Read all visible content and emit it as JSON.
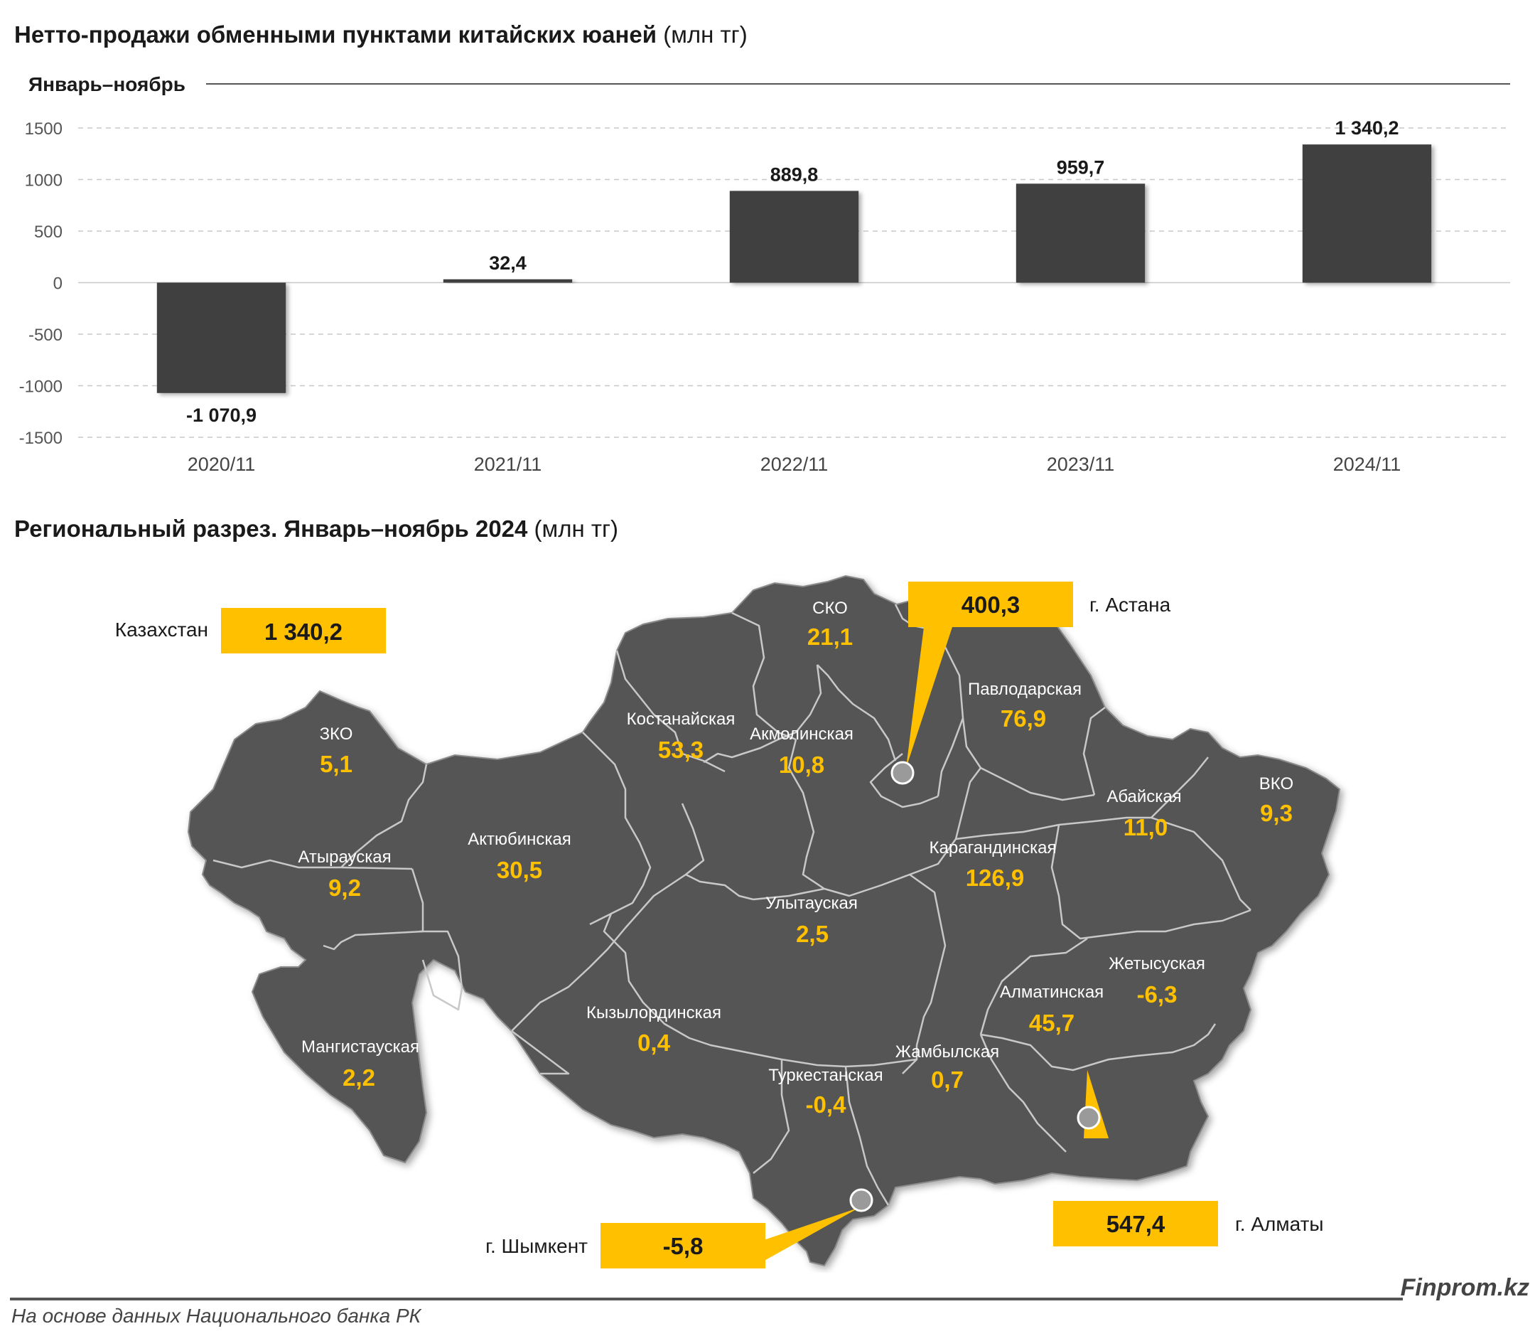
{
  "header": {
    "title_bold": "Нетто-продажи обменными пунктами китайских юаней",
    "title_unit": "(млн тг)",
    "period_label": "Январь–ноябрь"
  },
  "chart_data": {
    "type": "bar",
    "categories": [
      "2020/11",
      "2021/11",
      "2022/11",
      "2023/11",
      "2024/11"
    ],
    "values": [
      -1070.9,
      32.4,
      889.8,
      959.7,
      1340.2
    ],
    "value_labels": [
      "-1 070,9",
      "32,4",
      "889,8",
      "959,7",
      "1 340,2"
    ],
    "yticks": [
      1500,
      1000,
      500,
      0,
      -500,
      -1000,
      -1500
    ],
    "ylim": [
      -1500,
      1500
    ],
    "grid": true,
    "bar_color": "#404040"
  },
  "map_section": {
    "title_bold": "Региональный разрез. Январь–ноябрь 2024",
    "title_unit": "(млн тг)",
    "map_color": "#555555",
    "accent_color": "#ffc000",
    "total": {
      "label": "Казахстан",
      "value": "1 340,2"
    },
    "cities": {
      "astana": {
        "label": "г. Астана",
        "value": "400,3"
      },
      "almaty": {
        "label": "г. Алматы",
        "value": "547,4"
      },
      "shymkent": {
        "label": "г. Шымкент",
        "value": "-5,8"
      }
    },
    "regions": {
      "zko": {
        "name": "ЗКО",
        "value": "5,1"
      },
      "atyrau": {
        "name": "Атырауская",
        "value": "9,2"
      },
      "mangistau": {
        "name": "Мангистауская",
        "value": "2,2"
      },
      "aktobe": {
        "name": "Актюбинская",
        "value": "30,5"
      },
      "kostanay": {
        "name": "Костанайская",
        "value": "53,3"
      },
      "sko": {
        "name": "СКО",
        "value": "21,1"
      },
      "akmola": {
        "name": "Акмолинская",
        "value": "10,8"
      },
      "pavlodar": {
        "name": "Павлодарская",
        "value": "76,9"
      },
      "vko": {
        "name": "ВКО",
        "value": "9,3"
      },
      "abai": {
        "name": "Абайская",
        "value": "11,0"
      },
      "karaganda": {
        "name": "Карагандинская",
        "value": "126,9"
      },
      "ulytau": {
        "name": "Улытауская",
        "value": "2,5"
      },
      "kyzylorda": {
        "name": "Кызылординская",
        "value": "0,4"
      },
      "turkestan": {
        "name": "Туркестанская",
        "value": "-0,4"
      },
      "zhambyl": {
        "name": "Жамбылская",
        "value": "0,7"
      },
      "almaty_reg": {
        "name": "Алматинская",
        "value": "45,7"
      },
      "zhetysu": {
        "name": "Жетысуская",
        "value": "-6,3"
      }
    }
  },
  "footer": {
    "source": "На основе данных Национального банка РК",
    "brand": "Finprom.kz"
  }
}
